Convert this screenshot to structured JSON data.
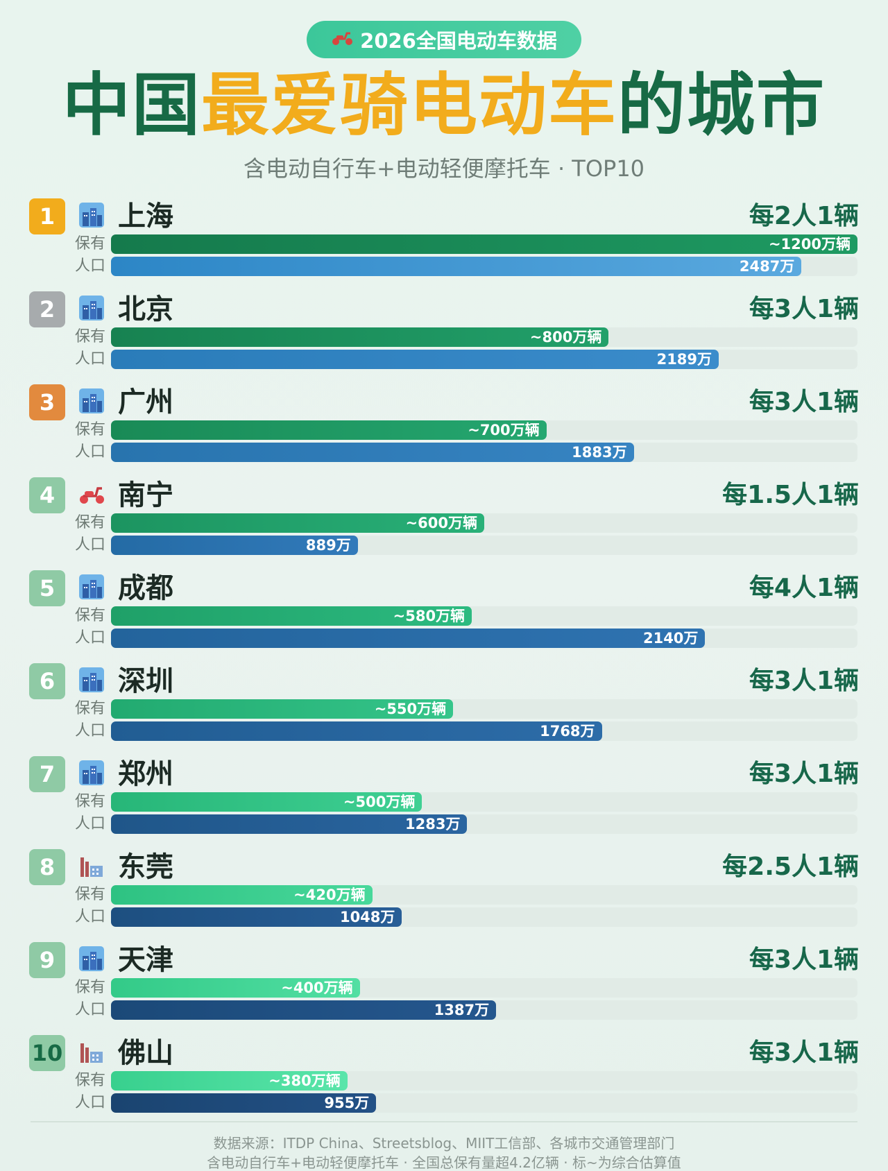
{
  "header": {
    "badge_icon": "scooter-icon",
    "badge_text": "2026全国电动车数据",
    "title_part1": "中国",
    "title_part2": "最爱骑电动车",
    "title_part3": "的城市",
    "subtitle": "含电动自行车+电动轻便摩托车 · TOP10"
  },
  "labels": {
    "ownership": "保有",
    "population": "人口"
  },
  "colors": {
    "rank_gold": "#f2ac1c",
    "rank_silver": "#a7abad",
    "rank_bronze": "#e28a3e",
    "rank_default": "#8fcaa5",
    "title_dark": "#176a45",
    "title_gold": "#f2ac1c"
  },
  "chart_data": {
    "type": "bar",
    "title": "中国最爱骑电动车的城市",
    "subtitle": "含电动自行车+电动轻便摩托车 · TOP10",
    "categories": [
      "上海",
      "北京",
      "广州",
      "南宁",
      "成都",
      "深圳",
      "郑州",
      "东莞",
      "天津",
      "佛山"
    ],
    "series": [
      {
        "name": "保有",
        "unit": "万辆",
        "values": [
          1200,
          800,
          700,
          600,
          580,
          550,
          500,
          420,
          400,
          380
        ],
        "labels": [
          "~1200万辆",
          "~800万辆",
          "~700万辆",
          "~600万辆",
          "~580万辆",
          "~550万辆",
          "~500万辆",
          "~420万辆",
          "~400万辆",
          "~380万辆"
        ]
      },
      {
        "name": "人口",
        "unit": "万",
        "values": [
          2487,
          2189,
          1883,
          889,
          2140,
          1768,
          1283,
          1048,
          1387,
          955
        ],
        "labels": [
          "2487万",
          "2189万",
          "1883万",
          "889万",
          "2140万",
          "1768万",
          "1283万",
          "1048万",
          "1387万",
          "955万"
        ]
      }
    ],
    "ratios": [
      "每2人1辆",
      "每3人1辆",
      "每3人1辆",
      "每1.5人1辆",
      "每4人1辆",
      "每3人1辆",
      "每3人1辆",
      "每2.5人1辆",
      "每3人1辆",
      "每3人1辆"
    ],
    "ranks": [
      "1",
      "2",
      "3",
      "4",
      "5",
      "6",
      "7",
      "8",
      "9",
      "10"
    ],
    "icons": [
      "city-icon",
      "city-icon",
      "city-icon",
      "scooter-icon",
      "city-icon",
      "city-icon",
      "city-icon",
      "factory-icon",
      "city-icon",
      "factory-icon"
    ]
  },
  "footer": {
    "source": "数据来源：ITDP China、Streetsblog、MIIT工信部、各城市交通管理部门",
    "note": "含电动自行车+电动轻便摩托车 · 全国总保有量超4.2亿辆 · 标~为综合估算值"
  }
}
